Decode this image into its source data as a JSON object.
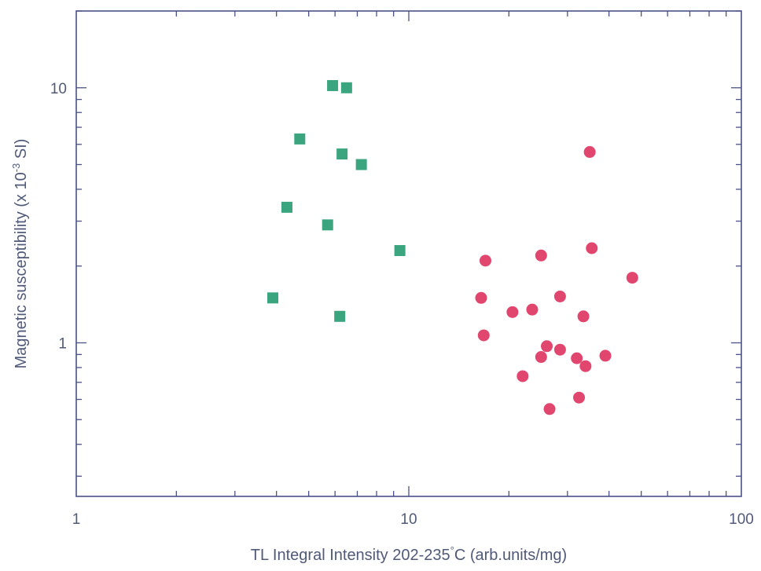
{
  "chart_data": {
    "type": "scatter",
    "title": "",
    "xlabel": "TL Integral Intensity 202-235°C (arb.units/mg)",
    "ylabel": "Magnetic susceptibility (x 10-3 SI)",
    "ylabel_parts": {
      "before": "Magnetic susceptibility (x 10",
      "sup": "-3",
      "after": " SI)"
    },
    "xlabel_parts": {
      "before": "TL Integral Intensity 202-235",
      "sup": "°",
      "after": "C (arb.units/mg)"
    },
    "x_scale": "log",
    "y_scale": "log",
    "xlim": [
      1,
      100
    ],
    "ylim": [
      0.25,
      20
    ],
    "x_tick_labels": [
      "1",
      "10",
      "100"
    ],
    "y_tick_labels": [
      "1",
      "10"
    ],
    "grid": false,
    "series": [
      {
        "marker": "square",
        "color": "#3aa57e",
        "points": [
          [
            5.9,
            10.2
          ],
          [
            6.5,
            10.0
          ],
          [
            4.7,
            6.3
          ],
          [
            6.3,
            5.5
          ],
          [
            7.2,
            5.0
          ],
          [
            4.3,
            3.4
          ],
          [
            5.7,
            2.9
          ],
          [
            9.4,
            2.3
          ],
          [
            3.9,
            1.5
          ],
          [
            6.2,
            1.27
          ]
        ]
      },
      {
        "marker": "circle",
        "color": "#e0466e",
        "points": [
          [
            35,
            5.6
          ],
          [
            35.5,
            2.35
          ],
          [
            25,
            2.2
          ],
          [
            17,
            2.1
          ],
          [
            47,
            1.8
          ],
          [
            16.5,
            1.5
          ],
          [
            28.5,
            1.52
          ],
          [
            23.5,
            1.35
          ],
          [
            20.5,
            1.32
          ],
          [
            33.5,
            1.27
          ],
          [
            16.8,
            1.07
          ],
          [
            26,
            0.97
          ],
          [
            28.5,
            0.94
          ],
          [
            25,
            0.88
          ],
          [
            32,
            0.87
          ],
          [
            39,
            0.89
          ],
          [
            34,
            0.81
          ],
          [
            22,
            0.74
          ],
          [
            32.5,
            0.61
          ],
          [
            26.5,
            0.55
          ]
        ]
      }
    ]
  }
}
